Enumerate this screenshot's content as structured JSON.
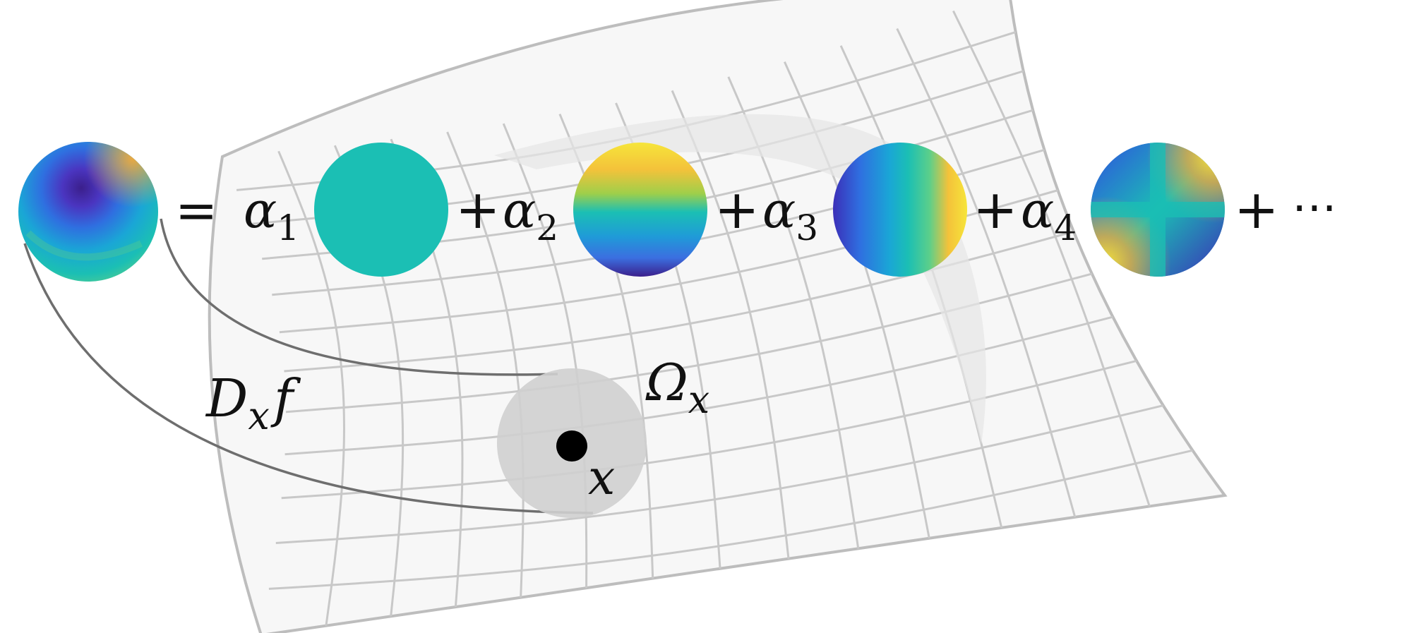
{
  "equation": {
    "equals": "=",
    "plus": "+",
    "ellipsis": "⋯",
    "coefficients": [
      {
        "symbol": "α",
        "index": "1"
      },
      {
        "symbol": "α",
        "index": "2"
      },
      {
        "symbol": "α",
        "index": "3"
      },
      {
        "symbol": "α",
        "index": "4"
      }
    ]
  },
  "labels": {
    "derivative": {
      "main": "D",
      "sub": "x",
      "func": "f"
    },
    "neighborhood": {
      "main": "Ω",
      "sub": "x"
    },
    "point": "x"
  },
  "colors": {
    "viridis_dark": "#3b1f8c",
    "viridis_blue": "#2f6fe0",
    "viridis_teal": "#1bbfb4",
    "viridis_yellow": "#f6e53a",
    "viridis_orange": "#f4a93a",
    "mesh_fill": "#f7f7f7",
    "mesh_line": "#c8c8c8",
    "neighborhood_fill": "#cfcfcf"
  }
}
